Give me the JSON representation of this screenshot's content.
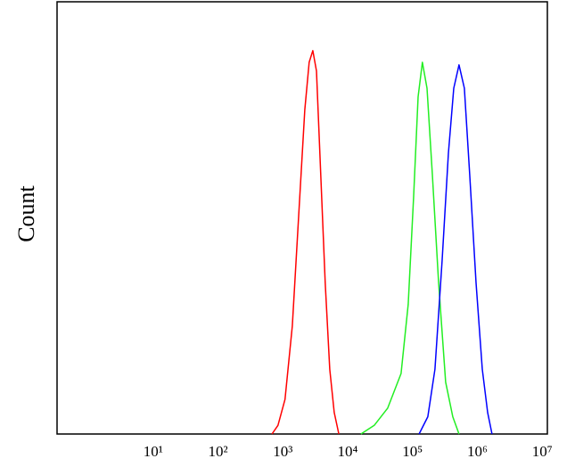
{
  "chart_data": {
    "type": "line",
    "y_label": "Count",
    "xscale": "log",
    "xlim": [
      0.33,
      12000000
    ],
    "xticks": [
      {
        "value": 10,
        "label": "10¹"
      },
      {
        "value": 100,
        "label": "10²"
      },
      {
        "value": 1000,
        "label": "10³"
      },
      {
        "value": 10000,
        "label": "10⁴"
      },
      {
        "value": 100000,
        "label": "10⁵"
      },
      {
        "value": 1000000,
        "label": "10⁶"
      },
      {
        "value": 10000000,
        "label": "10⁷"
      }
    ],
    "ylim": [
      0,
      100
    ],
    "series": [
      {
        "color": "#ff0000",
        "x": [
          680,
          840,
          1080,
          1400,
          1750,
          2180,
          2550,
          2900,
          3300,
          3850,
          4500,
          5300,
          6200,
          7300
        ],
        "values": [
          0,
          2,
          8,
          25,
          50,
          75,
          86,
          88.7,
          84,
          60,
          35,
          15,
          5,
          0
        ]
      },
      {
        "color": "#22ee22",
        "x": [
          16000,
          25700,
          41400,
          66500,
          85700,
          104000,
          122000,
          142000,
          167000,
          202000,
          252000,
          324000,
          418000,
          521000
        ],
        "values": [
          0,
          2,
          6,
          14,
          30,
          55,
          78,
          86,
          80,
          60,
          35,
          12,
          4,
          0
        ]
      },
      {
        "color": "#0000ff",
        "x": [
          126000,
          172000,
          222000,
          286000,
          357000,
          432000,
          521000,
          631000,
          762000,
          953000,
          1190000,
          1440000,
          1680000
        ],
        "values": [
          0,
          4,
          15,
          40,
          65,
          80,
          85.4,
          80,
          60,
          35,
          15,
          5,
          0
        ]
      }
    ]
  }
}
